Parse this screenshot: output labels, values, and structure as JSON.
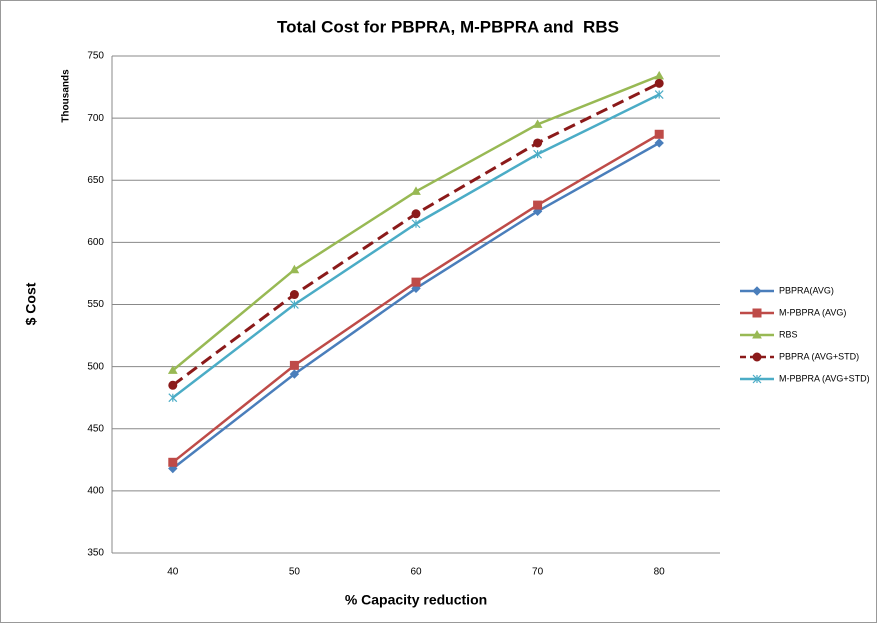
{
  "chart_data": {
    "type": "line",
    "title": "Total Cost for PBPRA, M-PBPRA and  RBS",
    "x_label": "% Capacity reduction",
    "y_label": "$ Cost",
    "y_units": "Thousands",
    "categories": [
      "40",
      "50",
      "60",
      "70",
      "80"
    ],
    "ylim": [
      350,
      750
    ],
    "yticks": [
      350,
      400,
      450,
      500,
      550,
      600,
      650,
      700,
      750
    ],
    "grid": true,
    "series": [
      {
        "name": "PBPRA(AVG)",
        "color": "#4a7ebb",
        "marker": "diamond",
        "values": [
          418,
          494,
          563,
          625,
          680
        ]
      },
      {
        "name": "M-PBPRA (AVG)",
        "color": "#be4b48",
        "marker": "square",
        "values": [
          423,
          501,
          568,
          630,
          687
        ]
      },
      {
        "name": "RBS",
        "color": "#98b954",
        "marker": "triangle",
        "values": [
          497,
          578,
          641,
          695,
          734
        ]
      },
      {
        "name": "PBPRA (AVG+STD)",
        "color": "#8b1a1a",
        "marker": "circle",
        "dashed": true,
        "values": [
          485,
          558,
          623,
          680,
          728
        ]
      },
      {
        "name": "M-PBPRA (AVG+STD)",
        "color": "#4bacc6",
        "marker": "star",
        "values": [
          475,
          550,
          615,
          671,
          719
        ]
      }
    ]
  }
}
